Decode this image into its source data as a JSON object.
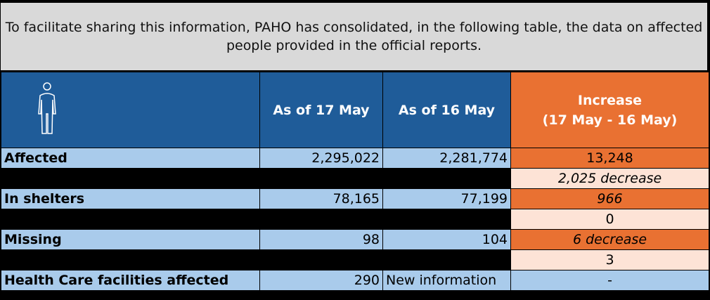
{
  "intro": "To facilitate sharing this information, PAHO has consolidated, in the following table, the data on affected people provided in the official reports.",
  "header": {
    "icon": "person-icon",
    "col1": "As of 17 May",
    "col2": "As of 16 May",
    "col3_line1": "Increase",
    "col3_line2": "(17 May - 16 May)"
  },
  "rows": [
    {
      "label": "Affected",
      "may17": "2,295,022",
      "may16": "2,281,774",
      "increase": "13,248",
      "sub": "2,025 decrease"
    },
    {
      "label": "In shelters",
      "may17": "78,165",
      "may16": "77,199",
      "increase": "966",
      "sub": "0"
    },
    {
      "label": "Missing",
      "may17": "98",
      "may16": "104",
      "increase": "6 decrease",
      "sub": "3"
    },
    {
      "label": "Health Care facilities affected",
      "may17": "290",
      "may16": "New information",
      "increase": "-"
    }
  ],
  "colors": {
    "header_blue": "#1f5c99",
    "orange": "#e97132",
    "light_orange": "#fde3d6",
    "light_blue": "#a9cbeb",
    "gray": "#d9d9d9"
  }
}
